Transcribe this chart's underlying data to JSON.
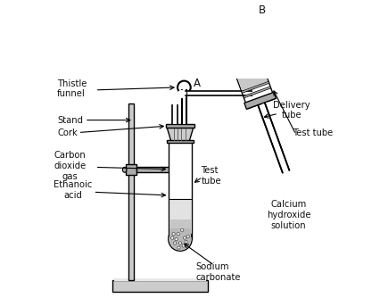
{
  "bg_color": "#ffffff",
  "line_color": "#000000",
  "gray_light": "#cccccc",
  "gray_med": "#aaaaaa",
  "gray_dark": "#888888",
  "labels": {
    "thistle_funnel": "Thistle\nfunnel",
    "stand": "Stand",
    "cork": "Cork",
    "carbon_dioxide": "Carbon\ndioxide\ngas",
    "ethanoic_acid": "Ethanoic\nacid",
    "test_tube_left": "Test\ntube",
    "sodium_carbonate": "Sodium\ncarbonate",
    "delivery_tube": "Delivery\ntube",
    "test_tube_right": "Test tube",
    "calcium_hydroxide": "Calcium\nhydroxide\nsolution",
    "A": "A",
    "B": "B"
  }
}
